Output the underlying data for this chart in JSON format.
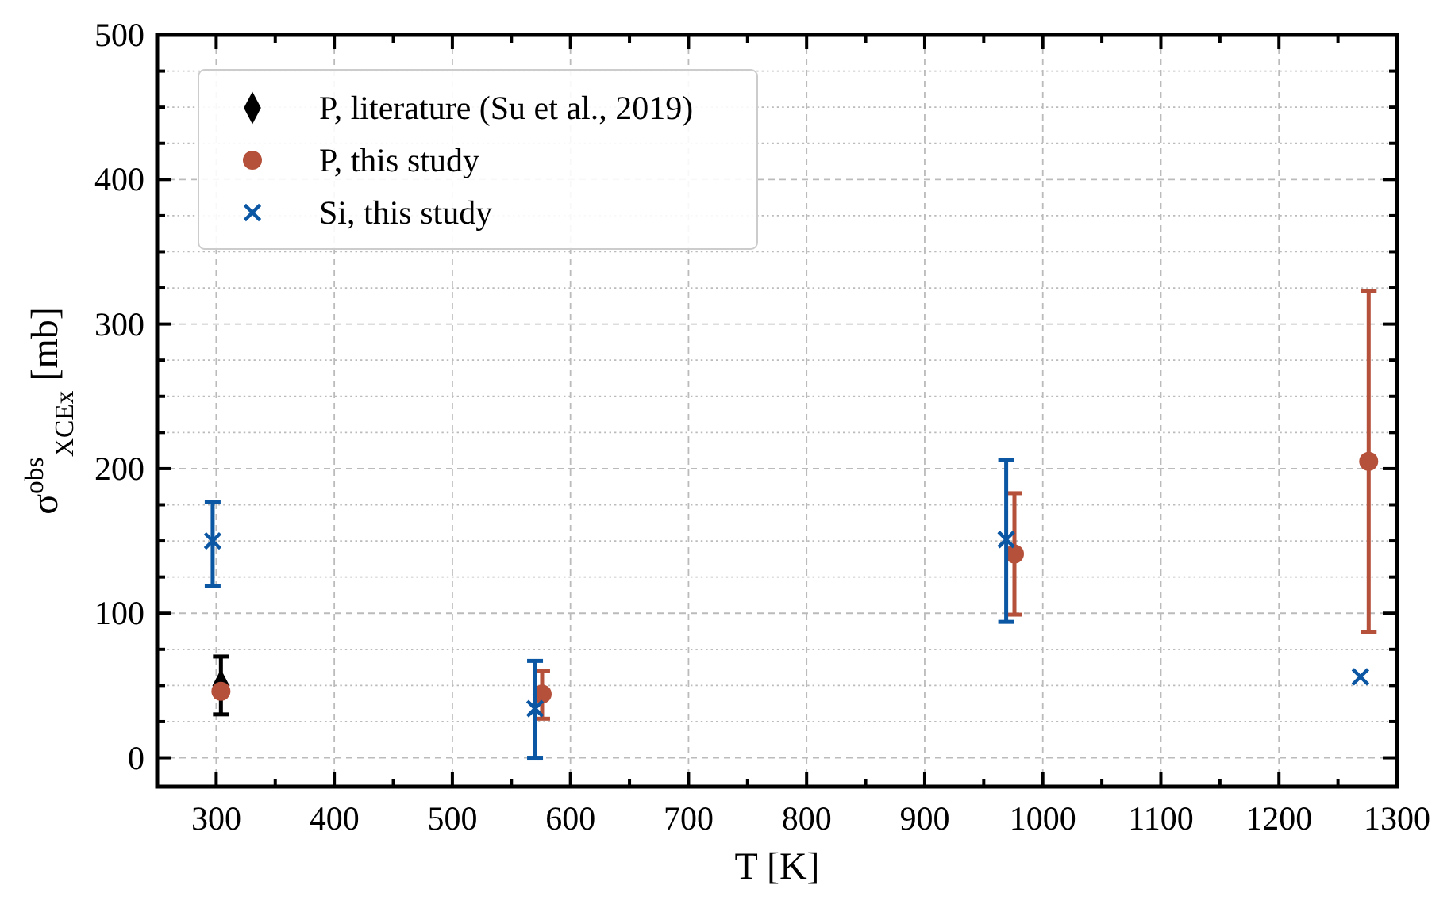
{
  "chart_data": {
    "type": "scatter",
    "xlabel": "T [K]",
    "ylabel": "σ$^{obs}$$_{XCEx}$ [mb]",
    "xlim": [
      250,
      1300
    ],
    "ylim": [
      -20,
      500
    ],
    "xticks": [
      {
        "value": 250,
        "label": null
      },
      300,
      {
        "value": 350,
        "label": null
      },
      400,
      {
        "value": 450,
        "label": null
      },
      500,
      {
        "value": 550,
        "label": null
      },
      600,
      {
        "value": 650,
        "label": null
      },
      700,
      {
        "value": 750,
        "label": null
      },
      800,
      {
        "value": 850,
        "label": null
      },
      900,
      {
        "value": 950,
        "label": null
      },
      1000,
      {
        "value": 1050,
        "label": null
      },
      1100,
      {
        "value": 1150,
        "label": null
      },
      1200,
      {
        "value": 1250,
        "label": null
      },
      1300
    ],
    "yticks": [
      0,
      {
        "value": 25,
        "label": null
      },
      {
        "value": 50,
        "label": null
      },
      {
        "value": 75,
        "label": null
      },
      100,
      {
        "value": 125,
        "label": null
      },
      {
        "value": 150,
        "label": null
      },
      {
        "value": 175,
        "label": null
      },
      200,
      {
        "value": 225,
        "label": null
      },
      {
        "value": 250,
        "label": null
      },
      {
        "value": 275,
        "label": null
      },
      300,
      {
        "value": 325,
        "label": null
      },
      {
        "value": 350,
        "label": null
      },
      {
        "value": 375,
        "label": null
      },
      400,
      {
        "value": 425,
        "label": null
      },
      {
        "value": 450,
        "label": null
      },
      {
        "value": 475,
        "label": null
      },
      500
    ],
    "grid": true,
    "legend": "top left",
    "series": [
      {
        "name": "P, literature (Su et al., 2019)",
        "color": "#000000",
        "marker": "diamond",
        "x": [
          304
        ],
        "values": [
          50
        ],
        "errors": [
          [
            30,
            70
          ]
        ]
      },
      {
        "name": "P, this study",
        "color": "#b5503a",
        "marker": "circle",
        "x": [
          304,
          576,
          976,
          1276
        ],
        "values": [
          46,
          44,
          141,
          205
        ],
        "errors": [
          null,
          [
            27,
            60
          ],
          [
            99,
            183
          ],
          [
            87,
            323
          ]
        ]
      },
      {
        "name": "Si, this study",
        "color": "#0b57a4",
        "marker": "cross",
        "x": [
          297,
          570,
          969,
          1269
        ],
        "values": [
          150,
          34,
          151,
          56
        ],
        "errors": [
          [
            119,
            177
          ],
          [
            0,
            67
          ],
          [
            94,
            206
          ],
          null
        ]
      }
    ]
  }
}
